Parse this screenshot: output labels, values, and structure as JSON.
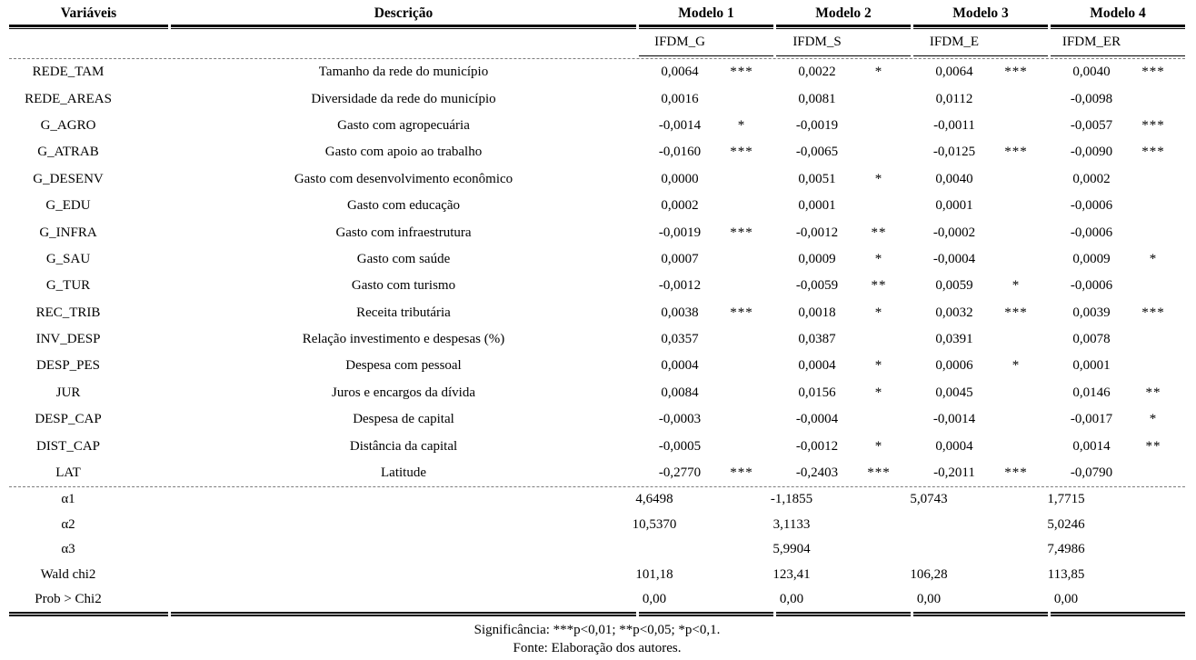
{
  "table": {
    "columns": {
      "variables_header": "Variáveis",
      "description_header": "Descrição",
      "models": [
        {
          "label": "Modelo 1",
          "index_label": "IFDM_G"
        },
        {
          "label": "Modelo 2",
          "index_label": "IFDM_S"
        },
        {
          "label": "Modelo 3",
          "index_label": "IFDM_E"
        },
        {
          "label": "Modelo 4",
          "index_label": "IFDM_ER"
        }
      ]
    },
    "rows": [
      {
        "variable": "REDE_TAM",
        "description": "Tamanho da rede do município",
        "values": [
          "0,0064",
          "0,0022",
          "0,0064",
          "0,0040"
        ],
        "stars": [
          "***",
          "*",
          "***",
          "***"
        ]
      },
      {
        "variable": "REDE_AREAS",
        "description": "Diversidade da rede do município",
        "values": [
          "0,0016",
          "0,0081",
          "0,0112",
          "-0,0098"
        ],
        "stars": [
          "",
          "",
          "",
          ""
        ]
      },
      {
        "variable": "G_AGRO",
        "description": "Gasto com agropecuária",
        "values": [
          "-0,0014",
          "-0,0019",
          "-0,0011",
          "-0,0057"
        ],
        "stars": [
          "*",
          "",
          "",
          "***"
        ]
      },
      {
        "variable": "G_ATRAB",
        "description": "Gasto com apoio ao trabalho",
        "values": [
          "-0,0160",
          "-0,0065",
          "-0,0125",
          "-0,0090"
        ],
        "stars": [
          "***",
          "",
          "***",
          "***"
        ]
      },
      {
        "variable": "G_DESENV",
        "description": "Gasto com desenvolvimento econômico",
        "values": [
          "0,0000",
          "0,0051",
          "0,0040",
          "0,0002"
        ],
        "stars": [
          "",
          "*",
          "",
          ""
        ]
      },
      {
        "variable": "G_EDU",
        "description": "Gasto com educação",
        "values": [
          "0,0002",
          "0,0001",
          "0,0001",
          "-0,0006"
        ],
        "stars": [
          "",
          "",
          "",
          ""
        ]
      },
      {
        "variable": "G_INFRA",
        "description": "Gasto com infraestrutura",
        "values": [
          "-0,0019",
          "-0,0012",
          "-0,0002",
          "-0,0006"
        ],
        "stars": [
          "***",
          "**",
          "",
          ""
        ]
      },
      {
        "variable": "G_SAU",
        "description": "Gasto com saúde",
        "values": [
          "0,0007",
          "0,0009",
          "-0,0004",
          "0,0009"
        ],
        "stars": [
          "",
          "*",
          "",
          "*"
        ]
      },
      {
        "variable": "G_TUR",
        "description": "Gasto com turismo",
        "values": [
          "-0,0012",
          "-0,0059",
          "0,0059",
          "-0,0006"
        ],
        "stars": [
          "",
          "**",
          "*",
          ""
        ]
      },
      {
        "variable": "REC_TRIB",
        "description": "Receita tributária",
        "values": [
          "0,0038",
          "0,0018",
          "0,0032",
          "0,0039"
        ],
        "stars": [
          "***",
          "*",
          "***",
          "***"
        ]
      },
      {
        "variable": "INV_DESP",
        "description": "Relação investimento e despesas (%)",
        "values": [
          "0,0357",
          "0,0387",
          "0,0391",
          "0,0078"
        ],
        "stars": [
          "",
          "",
          "",
          ""
        ]
      },
      {
        "variable": "DESP_PES",
        "description": "Despesa com pessoal",
        "values": [
          "0,0004",
          "0,0004",
          "0,0006",
          "0,0001"
        ],
        "stars": [
          "",
          "*",
          "*",
          ""
        ]
      },
      {
        "variable": "JUR",
        "description": "Juros e encargos da dívida",
        "values": [
          "0,0084",
          "0,0156",
          "0,0045",
          "0,0146"
        ],
        "stars": [
          "",
          "*",
          "",
          "**"
        ]
      },
      {
        "variable": "DESP_CAP",
        "description": "Despesa de capital",
        "values": [
          "-0,0003",
          "-0,0004",
          "-0,0014",
          "-0,0017"
        ],
        "stars": [
          "",
          "",
          "",
          "*"
        ]
      },
      {
        "variable": "DIST_CAP",
        "description": "Distância da capital",
        "values": [
          "-0,0005",
          "-0,0012",
          "0,0004",
          "0,0014"
        ],
        "stars": [
          "",
          "*",
          "",
          "**"
        ]
      },
      {
        "variable": "LAT",
        "description": "Latitude",
        "values": [
          "-0,2770",
          "-0,2403",
          "-0,2011",
          "-0,0790"
        ],
        "stars": [
          "***",
          "***",
          "***",
          ""
        ]
      }
    ],
    "summary_rows": [
      {
        "label": "α1",
        "values": [
          "4,6498",
          "-1,1855",
          "5,0743",
          "1,7715"
        ]
      },
      {
        "label": "α2",
        "values": [
          "10,5370",
          "3,1133",
          "",
          "5,0246"
        ]
      },
      {
        "label": "α3",
        "values": [
          "",
          "5,9904",
          "",
          "7,4986"
        ]
      },
      {
        "label": "Wald chi2",
        "values": [
          "101,18",
          "123,41",
          "106,28",
          "113,85"
        ]
      },
      {
        "label": "Prob > Chi2",
        "values": [
          "0,00",
          "0,00",
          "0,00",
          "0,00"
        ]
      }
    ],
    "footer": {
      "significance": "Significância: ***p<0,01; **p<0,05; *p<0,1.",
      "source": "Fonte: Elaboração dos autores."
    }
  }
}
